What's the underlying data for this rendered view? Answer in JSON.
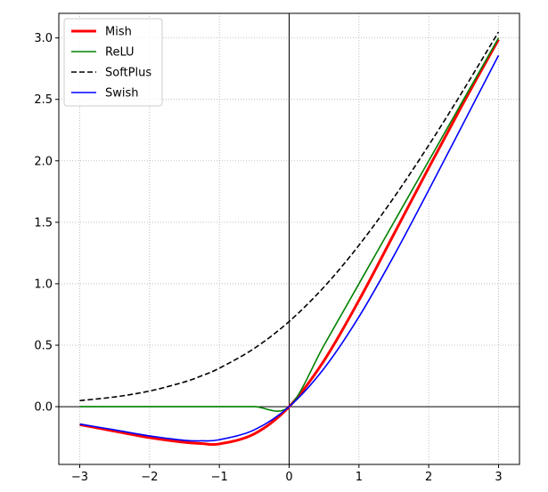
{
  "chart_data": {
    "type": "line",
    "title": "",
    "xlabel": "",
    "ylabel": "",
    "xlim": [
      -3.3,
      3.3
    ],
    "ylim": [
      -0.47,
      3.2
    ],
    "grid": true,
    "legend_position": "top-left",
    "xticks": [
      -3,
      -2,
      -1,
      0,
      1,
      2,
      3
    ],
    "xtick_labels": [
      "−3",
      "−2",
      "−1",
      "0",
      "1",
      "2",
      "3"
    ],
    "yticks": [
      0.0,
      0.5,
      1.0,
      1.5,
      2.0,
      2.5,
      3.0
    ],
    "ytick_labels": [
      "0.0",
      "0.5",
      "1.0",
      "1.5",
      "2.0",
      "2.5",
      "3.0"
    ],
    "x": [
      -3.0,
      -2.5,
      -2.0,
      -1.5,
      -1.25,
      -1.0,
      -0.5,
      0.0,
      0.5,
      1.0,
      1.5,
      2.0,
      2.5,
      3.0
    ],
    "series": [
      {
        "name": "Mish",
        "color": "#ff0000",
        "style": "solid",
        "values": [
          -0.146,
          -0.2,
          -0.252,
          -0.29,
          -0.3,
          -0.303,
          -0.222,
          0.0,
          0.375,
          0.865,
          1.403,
          1.944,
          2.475,
          2.987
        ]
      },
      {
        "name": "ReLU",
        "color": "#008000",
        "style": "solid",
        "values": [
          0.0,
          0.0,
          0.0,
          0.0,
          0.0,
          0.0,
          0.0,
          0.0,
          0.5,
          1.0,
          1.5,
          2.0,
          2.5,
          3.0
        ]
      },
      {
        "name": "SoftPlus",
        "color": "#000000",
        "style": "dashed",
        "values": [
          0.049,
          0.079,
          0.127,
          0.201,
          0.252,
          0.313,
          0.474,
          0.693,
          0.974,
          1.313,
          1.701,
          2.127,
          2.579,
          3.049
        ]
      },
      {
        "name": "Swish",
        "color": "#0000ff",
        "style": "solid",
        "values": [
          -0.142,
          -0.189,
          -0.238,
          -0.274,
          -0.278,
          -0.269,
          -0.189,
          0.0,
          0.311,
          0.731,
          1.227,
          1.762,
          2.31,
          2.858
        ]
      }
    ]
  }
}
